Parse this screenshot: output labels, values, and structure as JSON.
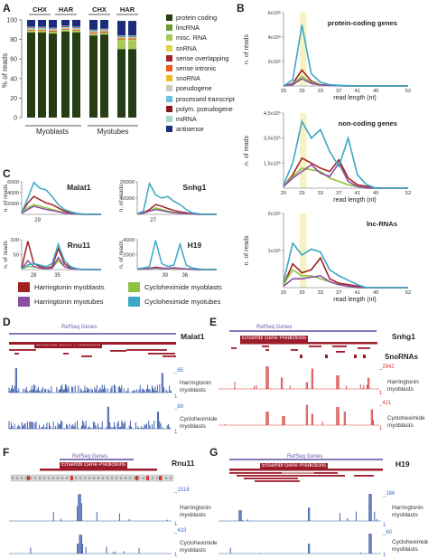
{
  "panel_labels": {
    "a": "A",
    "b": "B",
    "c": "C",
    "d": "D",
    "e": "E",
    "f": "F",
    "g": "G"
  },
  "panel_a": {
    "ylabel": "% of reads",
    "yticks": [
      "100",
      "80",
      "60",
      "40",
      "20",
      "0"
    ],
    "group_labels": [
      "CHX",
      "HAR",
      "CHX",
      "HAR"
    ],
    "cell_labels": [
      "Myoblasts",
      "Myotubes"
    ],
    "legend": [
      {
        "label": "protein coding",
        "color": "#263d14"
      },
      {
        "label": "lincRNA",
        "color": "#6aa033"
      },
      {
        "label": "misc. RNA",
        "color": "#a6c955"
      },
      {
        "label": "snRNA",
        "color": "#e2d24b"
      },
      {
        "label": "sense overlapping",
        "color": "#a82424"
      },
      {
        "label": "sense intronic",
        "color": "#e85b22"
      },
      {
        "label": "snoRNA",
        "color": "#f3b92a"
      },
      {
        "label": "pseudogene",
        "color": "#c9cbbc"
      },
      {
        "label": "processed transcript",
        "color": "#67c2de"
      },
      {
        "label": "polym. pseudogene",
        "color": "#8a1a1a"
      },
      {
        "label": "miRNA",
        "color": "#a7d8c8"
      },
      {
        "label": "antisense",
        "color": "#1b2d7a"
      }
    ]
  },
  "panel_b": {
    "xlabel": "read length (nt)",
    "ylabel": "n. of reads",
    "xticks": [
      "25",
      "29",
      "33",
      "37",
      "41",
      "45",
      "52"
    ],
    "charts": [
      {
        "title": "protein-coding genes",
        "yticks": [
          "6x10⁶",
          "4x10⁶",
          "2x10⁶"
        ]
      },
      {
        "title": "non-coding genes",
        "yticks": [
          "4,5x10⁵",
          "3,0x10⁵",
          "1,5x10⁵"
        ]
      },
      {
        "title": "lnc-RNAs",
        "yticks": [
          "2x10⁵",
          "1x10⁵"
        ]
      }
    ]
  },
  "panel_c": {
    "ylabel": "n. of reads",
    "genes": [
      {
        "name": "Malat1",
        "yticks": [
          "6000",
          "4000",
          "2000"
        ],
        "xticks": [
          "29"
        ]
      },
      {
        "name": "Snhg1",
        "yticks": [
          "20000",
          "10000"
        ],
        "xticks": [
          "27"
        ]
      },
      {
        "name": "Rnu11",
        "yticks": [
          "100",
          "50"
        ],
        "xticks": [
          "28",
          "35"
        ]
      },
      {
        "name": "H19",
        "yticks": [
          "4000",
          "2000"
        ],
        "xticks": [
          "30",
          "36"
        ]
      }
    ],
    "legend": [
      {
        "label": "Harringtonin myoblasts",
        "color": "#a32323"
      },
      {
        "label": "Cycloheximide myoblasts",
        "color": "#8cc43f"
      },
      {
        "label": "Harringtonin myotubes",
        "color": "#8a4fa3"
      },
      {
        "label": "Cycloheximide myotubes",
        "color": "#3aa8c6"
      }
    ]
  },
  "panel_d": {
    "gene": "Malat1",
    "refseq": "RefSeq Genes",
    "ensembl": "Ensembl Gene Predictions",
    "track1": "Harringtonin\nmyoblasts",
    "track2": "Cycloheximide\nmyoblasts",
    "scale1": "65",
    "scale2": "89",
    "one": "1"
  },
  "panel_e": {
    "gene": "Snhg1",
    "refseq": "RefSeq Genes",
    "ensembl": "Ensembl Gene Predictions",
    "sno": "SnoRNAs",
    "track1": "Harringtonin\nmyoblasts",
    "track2": "Cycloheximide\nmyoblasts",
    "scale1": "2942",
    "scale2": "421",
    "one": "1"
  },
  "panel_f": {
    "gene": "Rnu11",
    "refseq": "RefSeq Genes",
    "ensembl": "Ensembl Gene Predictions",
    "track1": "Harringtonin\nmyoblasts",
    "track2": "Cycloheximide\nmyoblasts",
    "scale1": "1518",
    "scale2": "433",
    "one": "1"
  },
  "panel_g": {
    "gene": "H19",
    "refseq": "RefSeq Genes",
    "ensembl": "Ensembl Gene Predictions",
    "track1": "Harringtonin\nmyoblasts",
    "track2": "Cycloheximide\nmyoblasts",
    "scale1": "186",
    "scale2": "60",
    "one": "1"
  },
  "chart_data": [
    {
      "type": "bar",
      "stacked": true,
      "categories": [
        "CHX myoblasts 1",
        "CHX myoblasts 2",
        "CHX myoblasts 3",
        "HAR myoblasts 1",
        "HAR myoblasts 2",
        "CHX myotubes 1",
        "CHX myotubes 2",
        "HAR myotubes 1",
        "HAR myotubes 2"
      ],
      "ylim": [
        0,
        100
      ],
      "ylabel": "% of reads",
      "series": [
        {
          "name": "protein coding",
          "values": [
            87,
            87,
            86,
            88,
            87,
            84,
            85,
            70,
            70
          ]
        },
        {
          "name": "lincRNA",
          "values": [
            0.5,
            0.5,
            0.5,
            0.5,
            0.5,
            0.5,
            0.5,
            0.5,
            0.5
          ]
        },
        {
          "name": "misc. RNA",
          "values": [
            1,
            1,
            1,
            1,
            1,
            1,
            1,
            9,
            9
          ]
        },
        {
          "name": "snRNA",
          "values": [
            0.5,
            0.5,
            0.5,
            0.5,
            0.5,
            0.5,
            0.5,
            0.5,
            0.5
          ]
        },
        {
          "name": "sense overlapping",
          "values": [
            0.5,
            0.5,
            0.5,
            0.5,
            0.5,
            0.5,
            0.5,
            0.5,
            0.5
          ]
        },
        {
          "name": "sense intronic",
          "values": [
            0.5,
            0.5,
            0.5,
            0.5,
            0.5,
            0.5,
            0.5,
            0.5,
            0.5
          ]
        },
        {
          "name": "snoRNA",
          "values": [
            0.5,
            0.5,
            0.5,
            0.5,
            0.5,
            0.5,
            0.5,
            0.5,
            0.5
          ]
        },
        {
          "name": "pseudogene",
          "values": [
            0.5,
            0.5,
            0.5,
            0.5,
            0.5,
            0.5,
            0.5,
            0.5,
            0.5
          ]
        },
        {
          "name": "processed transcript",
          "values": [
            1,
            1,
            1,
            1,
            1,
            1,
            1,
            1,
            1
          ]
        },
        {
          "name": "polym. pseudogene",
          "values": [
            0.5,
            0.5,
            0.5,
            0.5,
            0.5,
            0.5,
            0.5,
            0.5,
            0.5
          ]
        },
        {
          "name": "miRNA",
          "values": [
            0.5,
            0.5,
            0.5,
            0.5,
            0.5,
            0.5,
            0.5,
            0.5,
            0.5
          ]
        },
        {
          "name": "antisense",
          "values": [
            7,
            7,
            8,
            6,
            7,
            10,
            9,
            15,
            15
          ]
        }
      ]
    },
    {
      "type": "line",
      "title": "protein-coding genes",
      "x": [
        25,
        27,
        29,
        31,
        33,
        35,
        37,
        39,
        41,
        43,
        45,
        52
      ],
      "ylim": [
        0,
        6000000
      ],
      "series": [
        {
          "name": "Harringtonin myoblasts",
          "values": [
            0,
            200000,
            1300000,
            400000,
            100000,
            50000,
            20000,
            10000,
            5000,
            0,
            0,
            0
          ]
        },
        {
          "name": "Cycloheximide myoblasts",
          "values": [
            0,
            150000,
            800000,
            300000,
            100000,
            50000,
            20000,
            10000,
            5000,
            0,
            0,
            0
          ]
        },
        {
          "name": "Harringtonin myotubes",
          "values": [
            0,
            100000,
            600000,
            200000,
            80000,
            40000,
            20000,
            10000,
            5000,
            0,
            0,
            0
          ]
        },
        {
          "name": "Cycloheximide myotubes",
          "values": [
            0,
            500000,
            5000000,
            1000000,
            300000,
            100000,
            50000,
            20000,
            10000,
            0,
            0,
            0
          ]
        }
      ]
    },
    {
      "type": "line",
      "title": "non-coding genes",
      "x": [
        25,
        27,
        29,
        31,
        33,
        35,
        37,
        39,
        41,
        43,
        45,
        52
      ],
      "ylim": [
        0,
        450000
      ],
      "series": [
        {
          "name": "Harringtonin myoblasts",
          "values": [
            10000,
            80000,
            180000,
            150000,
            120000,
            100000,
            170000,
            60000,
            20000,
            10000,
            0,
            0
          ]
        },
        {
          "name": "Cycloheximide myoblasts",
          "values": [
            10000,
            70000,
            120000,
            110000,
            100000,
            60000,
            40000,
            20000,
            10000,
            0,
            0,
            0
          ]
        },
        {
          "name": "Harringtonin myotubes",
          "values": [
            10000,
            60000,
            100000,
            140000,
            90000,
            70000,
            150000,
            40000,
            10000,
            0,
            0,
            0
          ]
        },
        {
          "name": "Cycloheximide myotubes",
          "values": [
            20000,
            150000,
            400000,
            300000,
            350000,
            220000,
            130000,
            300000,
            80000,
            20000,
            0,
            0
          ]
        }
      ]
    },
    {
      "type": "line",
      "title": "lnc-RNAs",
      "x": [
        25,
        27,
        29,
        31,
        33,
        35,
        37,
        39,
        41,
        43,
        45,
        52
      ],
      "ylim": [
        0,
        250000
      ],
      "series": [
        {
          "name": "Harringtonin myoblasts",
          "values": [
            10000,
            80000,
            50000,
            60000,
            100000,
            30000,
            15000,
            10000,
            5000,
            0,
            0,
            0
          ]
        },
        {
          "name": "Cycloheximide myoblasts",
          "values": [
            10000,
            60000,
            40000,
            40000,
            30000,
            20000,
            10000,
            5000,
            0,
            0,
            0,
            0
          ]
        },
        {
          "name": "Harringtonin myotubes",
          "values": [
            5000,
            30000,
            30000,
            35000,
            40000,
            20000,
            10000,
            5000,
            0,
            0,
            0,
            0
          ]
        },
        {
          "name": "Cycloheximide myotubes",
          "values": [
            20000,
            150000,
            110000,
            130000,
            120000,
            60000,
            40000,
            25000,
            10000,
            0,
            0,
            0
          ]
        }
      ]
    }
  ]
}
